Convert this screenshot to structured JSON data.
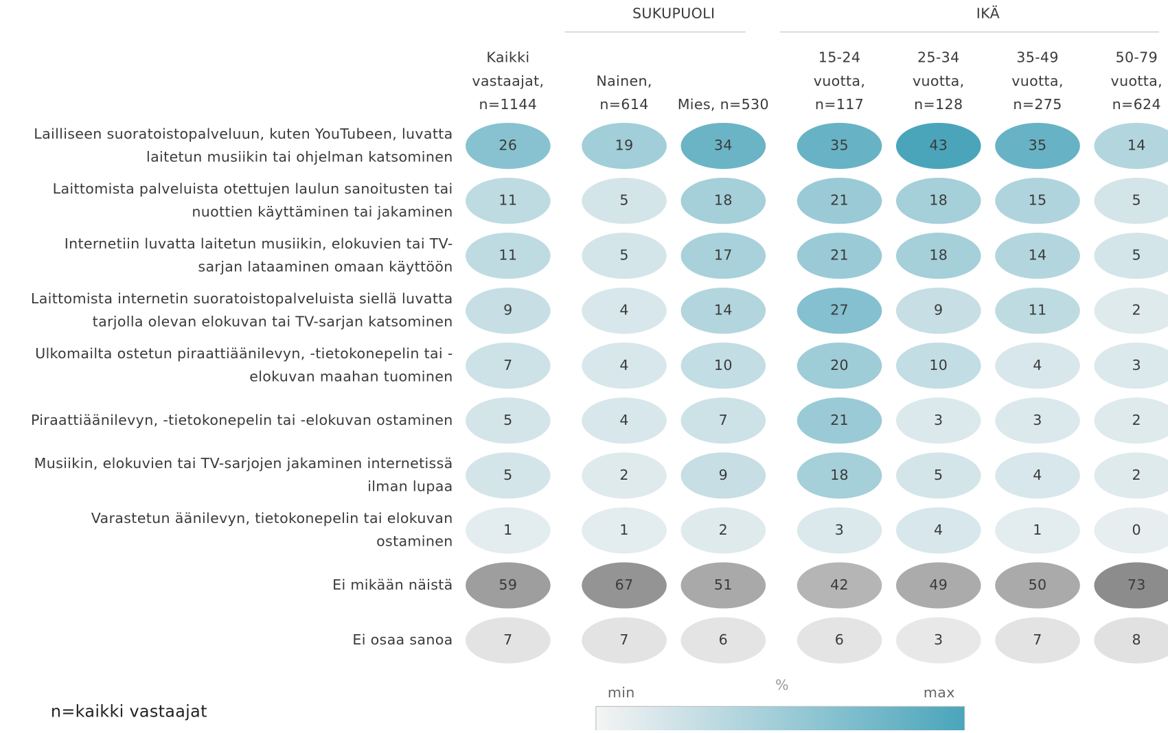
{
  "chart_data": {
    "type": "heatmap",
    "groups": [
      {
        "label": "SUKUPUOLI",
        "from": 1,
        "to": 2
      },
      {
        "label": "IKÄ",
        "from": 3,
        "to": 6
      }
    ],
    "columns": [
      [
        "Kaikki",
        "vastaajat,",
        "n=1144"
      ],
      [
        "Nainen,",
        "n=614"
      ],
      [
        "Mies, n=530"
      ],
      [
        "15-24",
        "vuotta,",
        "n=117"
      ],
      [
        "25-34",
        "vuotta,",
        "n=128"
      ],
      [
        "35-49",
        "vuotta,",
        "n=275"
      ],
      [
        "50-79",
        "vuotta,",
        "n=624"
      ]
    ],
    "rows": [
      {
        "label": [
          "Lailliseen suoratoistopalveluun, kuten YouTubeen, luvatta",
          "laitetun musiikin tai ohjelman katsominen"
        ],
        "color": "#4aa5bb",
        "values": [
          26,
          19,
          34,
          35,
          43,
          35,
          14
        ]
      },
      {
        "label": [
          "Laittomista palveluista otettujen laulun sanoitusten tai",
          "nuottien käyttäminen tai jakaminen"
        ],
        "color": "#4aa5bb",
        "values": [
          11,
          5,
          18,
          21,
          18,
          15,
          5
        ]
      },
      {
        "label": [
          "Internetiin luvatta laitetun musiikin, elokuvien tai TV-",
          "sarjan lataaminen omaan käyttöön"
        ],
        "color": "#4aa5bb",
        "values": [
          11,
          5,
          17,
          21,
          18,
          14,
          5
        ]
      },
      {
        "label": [
          "Laittomista internetin suoratoistopalveluista siellä luvatta",
          "tarjolla olevan elokuvan tai TV-sarjan katsominen"
        ],
        "color": "#4aa5bb",
        "values": [
          9,
          4,
          14,
          27,
          9,
          11,
          2
        ]
      },
      {
        "label": [
          "Ulkomailta ostetun piraattiäänilevyn, -tietokonepelin tai -",
          "elokuvan maahan tuominen"
        ],
        "color": "#4aa5bb",
        "values": [
          7,
          4,
          10,
          20,
          10,
          4,
          3
        ]
      },
      {
        "label": [
          "Piraattiäänilevyn, -tietokonepelin tai -elokuvan ostaminen"
        ],
        "color": "#4aa5bb",
        "values": [
          5,
          4,
          7,
          21,
          3,
          3,
          2
        ]
      },
      {
        "label": [
          "Musiikin, elokuvien tai TV-sarjojen jakaminen internetissä",
          "ilman lupaa"
        ],
        "color": "#4aa5bb",
        "values": [
          5,
          2,
          9,
          18,
          5,
          4,
          2
        ]
      },
      {
        "label": [
          "Varastetun äänilevyn, tietokonepelin tai elokuvan",
          "ostaminen"
        ],
        "color": "#4aa5bb",
        "values": [
          1,
          1,
          2,
          3,
          4,
          1,
          0
        ]
      },
      {
        "label": [
          "Ei mikään näistä"
        ],
        "color": "#8c8c8c",
        "values": [
          59,
          67,
          51,
          42,
          49,
          50,
          73
        ]
      },
      {
        "label": [
          "Ei osaa sanoa"
        ],
        "color": "#8c8c8c",
        "values": [
          7,
          7,
          6,
          6,
          3,
          7,
          8
        ]
      }
    ],
    "legend": {
      "min": "min",
      "unit": "%",
      "max": "max",
      "low_color": "#f4f4f4",
      "high_color": "#4aa5bb"
    },
    "note": "n=kaikki vastaajat"
  }
}
